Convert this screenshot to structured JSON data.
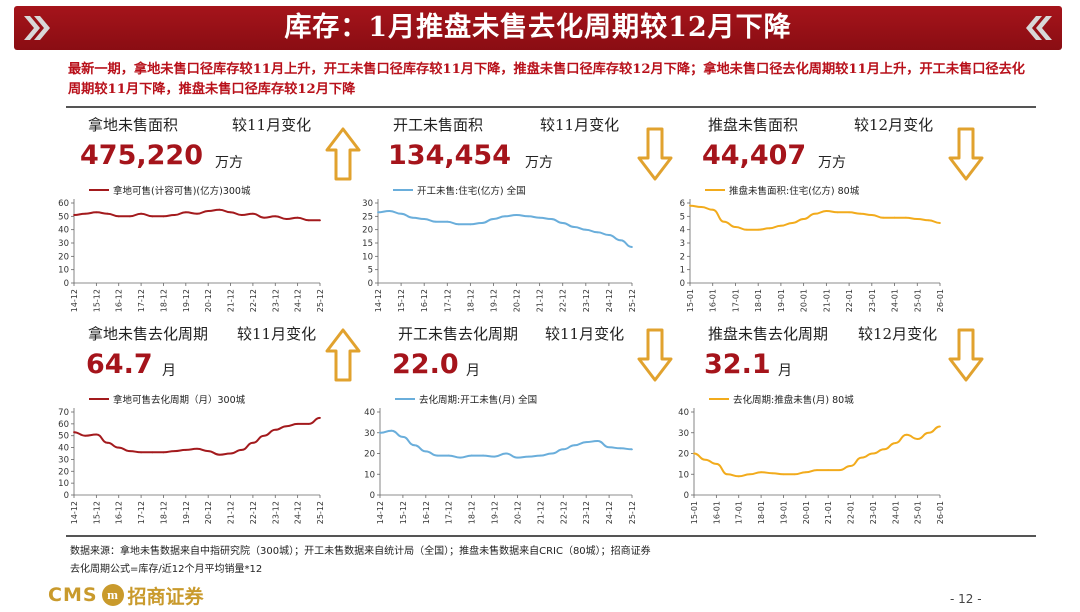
{
  "header": {
    "title": "库存：1月推盘未售去化周期较12月下降"
  },
  "summary": "最新一期，拿地未售口径库存较11月上升，开工未售口径库存较11月下降，推盘未售口径库存较12月下降；拿地未售口径去化周期较11月上升，开工未售口径去化周期较11月下降，推盘未售口径库存较12月下降",
  "panels": [
    {
      "label": "拿地未售面积",
      "change": "较11月变化",
      "value": "475,220",
      "unit": "万方",
      "direction": "up"
    },
    {
      "label": "开工未售面积",
      "change": "较11月变化",
      "value": "134,454",
      "unit": "万方",
      "direction": "down"
    },
    {
      "label": "推盘未售面积",
      "change": "较12月变化",
      "value": "44,407",
      "unit": "万方",
      "direction": "down"
    },
    {
      "label": "拿地未售去化周期",
      "change": "较11月变化",
      "value": "64.7",
      "unit": "月",
      "direction": "up"
    },
    {
      "label": "开工未售去化周期",
      "change": "较11月变化",
      "value": "22.0",
      "unit": "月",
      "direction": "down"
    },
    {
      "label": "推盘未售去化周期",
      "change": "较12月变化",
      "value": "32.1",
      "unit": "月",
      "direction": "down"
    }
  ],
  "colors": {
    "brand": "#a5141b",
    "red_series": "#a31a1d",
    "blue_series": "#6aaedb",
    "gold_series": "#f2ab1c",
    "arrow": "#e1a22e"
  },
  "chart_data": [
    {
      "type": "line",
      "legend": "拿地可售(计容可售)(亿方)300城",
      "color": "#a31a1d",
      "ylim": [
        0,
        60
      ],
      "yticks": [
        0,
        10,
        20,
        30,
        40,
        50,
        60
      ],
      "xticks": [
        "14-12",
        "15-12",
        "16-12",
        "17-12",
        "18-12",
        "19-12",
        "20-12",
        "21-12",
        "22-12",
        "23-12",
        "24-12",
        "25-12"
      ],
      "x": [
        0,
        0.5,
        1,
        1.5,
        2,
        2.5,
        3,
        3.5,
        4,
        4.5,
        5,
        5.5,
        6,
        6.5,
        7,
        7.5,
        8,
        8.5,
        9,
        9.5,
        10,
        10.5,
        11
      ],
      "values": [
        51,
        52,
        53,
        52,
        50,
        50,
        52,
        50,
        50,
        51,
        53,
        52,
        54,
        55,
        53,
        51,
        52,
        49,
        50,
        48,
        49,
        47,
        47
      ]
    },
    {
      "type": "line",
      "legend": "开工未售:住宅(亿方) 全国",
      "color": "#6aaedb",
      "ylim": [
        0,
        30
      ],
      "yticks": [
        0,
        5,
        10,
        15,
        20,
        25,
        30
      ],
      "xticks": [
        "14-12",
        "15-12",
        "16-12",
        "17-12",
        "18-12",
        "19-12",
        "20-12",
        "21-12",
        "22-12",
        "23-12",
        "24-12",
        "25-12"
      ],
      "x": [
        0,
        0.5,
        1,
        1.5,
        2,
        2.5,
        3,
        3.5,
        4,
        4.5,
        5,
        5.5,
        6,
        6.5,
        7,
        7.5,
        8,
        8.5,
        9,
        9.5,
        10,
        10.5,
        11
      ],
      "values": [
        26.5,
        27,
        26,
        24.5,
        24,
        23,
        23,
        22,
        22,
        22.5,
        24,
        25,
        25.5,
        25,
        24.5,
        24,
        22.5,
        21,
        20,
        19,
        18,
        16,
        13.5
      ]
    },
    {
      "type": "line",
      "legend": "推盘未售面积:住宅(亿方) 80城",
      "color": "#f2ab1c",
      "ylim": [
        0,
        6
      ],
      "yticks": [
        0,
        1,
        2,
        3,
        4,
        5,
        6
      ],
      "xticks": [
        "15-01",
        "16-01",
        "17-01",
        "18-01",
        "19-01",
        "20-01",
        "21-01",
        "22-01",
        "23-01",
        "24-01",
        "25-01",
        "26-01"
      ],
      "x": [
        0,
        0.5,
        1,
        1.5,
        2,
        2.5,
        3,
        3.5,
        4,
        4.5,
        5,
        5.5,
        6,
        6.5,
        7,
        7.5,
        8,
        8.5,
        9,
        9.5,
        10,
        10.5,
        11
      ],
      "values": [
        5.8,
        5.7,
        5.5,
        4.6,
        4.2,
        4.0,
        4.0,
        4.1,
        4.3,
        4.5,
        4.8,
        5.2,
        5.4,
        5.3,
        5.3,
        5.2,
        5.1,
        4.9,
        4.9,
        4.9,
        4.8,
        4.7,
        4.5
      ]
    },
    {
      "type": "line",
      "legend": "拿地可售去化周期（月）300城",
      "color": "#a31a1d",
      "ylim": [
        0,
        70
      ],
      "yticks": [
        0,
        10,
        20,
        30,
        40,
        50,
        60,
        70
      ],
      "xticks": [
        "14-12",
        "15-12",
        "16-12",
        "17-12",
        "18-12",
        "19-12",
        "20-12",
        "21-12",
        "22-12",
        "23-12",
        "24-12",
        "25-12"
      ],
      "x": [
        0,
        0.5,
        1,
        1.5,
        2,
        2.5,
        3,
        3.5,
        4,
        4.5,
        5,
        5.5,
        6,
        6.5,
        7,
        7.5,
        8,
        8.5,
        9,
        9.5,
        10,
        10.5,
        11
      ],
      "values": [
        53,
        50,
        51,
        44,
        40,
        37,
        36,
        36,
        36,
        37,
        38,
        39,
        37,
        34,
        35,
        38,
        44,
        50,
        55,
        58,
        60,
        60,
        65
      ]
    },
    {
      "type": "line",
      "legend": "去化周期:开工未售(月) 全国",
      "color": "#6aaedb",
      "ylim": [
        0,
        40
      ],
      "yticks": [
        0,
        10,
        20,
        30,
        40
      ],
      "xticks": [
        "14-12",
        "15-12",
        "16-12",
        "17-12",
        "18-12",
        "19-12",
        "20-12",
        "21-12",
        "22-12",
        "23-12",
        "24-12",
        "25-12"
      ],
      "x": [
        0,
        0.5,
        1,
        1.5,
        2,
        2.5,
        3,
        3.5,
        4,
        4.5,
        5,
        5.5,
        6,
        6.5,
        7,
        7.5,
        8,
        8.5,
        9,
        9.5,
        10,
        10.5,
        11
      ],
      "values": [
        30,
        31,
        28,
        24,
        21,
        19,
        19,
        18,
        19,
        19,
        18.5,
        20,
        18,
        18.5,
        19,
        20,
        22,
        24,
        25.5,
        26,
        23,
        22.5,
        22
      ]
    },
    {
      "type": "line",
      "legend": "去化周期:推盘未售(月) 80城",
      "color": "#f2ab1c",
      "ylim": [
        0,
        40
      ],
      "yticks": [
        0,
        10,
        20,
        30,
        40
      ],
      "xticks": [
        "15-01",
        "16-01",
        "17-01",
        "18-01",
        "19-01",
        "20-01",
        "21-01",
        "22-01",
        "23-01",
        "24-01",
        "25-01",
        "26-01"
      ],
      "x": [
        0,
        0.5,
        1,
        1.5,
        2,
        2.5,
        3,
        3.5,
        4,
        4.5,
        5,
        5.5,
        6,
        6.5,
        7,
        7.5,
        8,
        8.5,
        9,
        9.5,
        10,
        10.5,
        11
      ],
      "values": [
        20,
        17,
        15,
        10,
        9,
        10,
        11,
        10.5,
        10,
        10,
        11,
        12,
        12,
        12,
        14,
        18,
        20,
        22,
        25,
        29,
        27,
        30,
        33
      ]
    }
  ],
  "footer": {
    "line1": "数据来源：拿地未售数据来自中指研究院（300城）；开工未售数据来自统计局（全国）；推盘未售数据来自CRIC（80城）；招商证券",
    "line2": "去化周期公式=库存/近12个月平均销量*12"
  },
  "logo": {
    "cms": "CMS",
    "mark": "m",
    "cn": "招商证券"
  },
  "page": "- 12 -"
}
